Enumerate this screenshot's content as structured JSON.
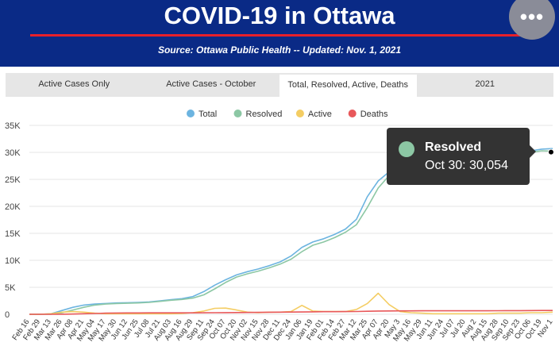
{
  "header": {
    "title": "COVID-19 in Ottawa",
    "subtitle": "Source:  Ottawa Public Health -- Updated:  Nov. 1, 2021",
    "menu_icon": "more-horizontal-icon",
    "background": "#0a2a86",
    "accent": "#e8202a"
  },
  "tabs": [
    {
      "label": "Active Cases Only",
      "active": false
    },
    {
      "label": "Active Cases - October",
      "active": false
    },
    {
      "label": "Total, Resolved, Active, Deaths",
      "active": true
    },
    {
      "label": "2021",
      "active": false
    }
  ],
  "tooltip": {
    "series": "Resolved",
    "text": "Oct 30: 30,054",
    "color": "#8cc7a4"
  },
  "chart_data": {
    "type": "line",
    "x": [
      "Feb 16",
      "Feb 29",
      "Mar 13",
      "Mar 26",
      "Apr 08",
      "Apr 21",
      "May 04",
      "May 17",
      "May 30",
      "Jun 12",
      "Jun 25",
      "Jul 08",
      "Jul 21",
      "Aug 03",
      "Aug 16",
      "Aug 29",
      "Sep 11",
      "Sep 24",
      "Oct 07",
      "Oct 20",
      "Nov 02",
      "Nov 15",
      "Nov 28",
      "Dec 11",
      "Dec 24",
      "Jan 06",
      "Jan 19",
      "Feb 01",
      "Feb 14",
      "Feb 27",
      "Mar 12",
      "Mar 25",
      "Apr 07",
      "Apr 20",
      "May 3",
      "May 16",
      "May 29",
      "Jun 11",
      "Jun 24",
      "Jul 07",
      "Jul 20",
      "Aug 2",
      "Aug 15",
      "Aug 28",
      "Sep 10",
      "Sep 23",
      "Oct 06",
      "Oct 19",
      "Nov 1"
    ],
    "series": [
      {
        "name": "Total",
        "color": "#6cb4e0",
        "values": [
          0,
          0,
          100,
          700,
          1300,
          1700,
          1900,
          2000,
          2100,
          2150,
          2200,
          2300,
          2500,
          2700,
          2900,
          3300,
          4200,
          5400,
          6400,
          7300,
          7900,
          8400,
          9000,
          9700,
          10800,
          12400,
          13400,
          14000,
          14800,
          15800,
          17600,
          21800,
          24700,
          26400,
          27200,
          27500,
          27800,
          27900,
          28000,
          28100,
          28200,
          28300,
          28600,
          29000,
          29400,
          29800,
          30300,
          30600,
          30700
        ]
      },
      {
        "name": "Resolved",
        "color": "#8cc7a4",
        "values": [
          0,
          0,
          0,
          300,
          800,
          1300,
          1700,
          1900,
          2000,
          2050,
          2100,
          2200,
          2400,
          2600,
          2750,
          3000,
          3600,
          4700,
          5900,
          6900,
          7500,
          8000,
          8600,
          9300,
          10200,
          11600,
          12800,
          13400,
          14200,
          15200,
          16600,
          19800,
          23400,
          25700,
          26600,
          27100,
          27500,
          27700,
          27900,
          28000,
          28100,
          28200,
          28400,
          28800,
          29200,
          29600,
          30000,
          30300,
          30200
        ]
      },
      {
        "name": "Active",
        "color": "#f4cd63",
        "values": [
          0,
          0,
          100,
          400,
          500,
          400,
          200,
          100,
          100,
          100,
          100,
          100,
          100,
          100,
          150,
          300,
          600,
          1100,
          1150,
          800,
          400,
          300,
          400,
          400,
          500,
          1650,
          600,
          500,
          500,
          500,
          900,
          2000,
          3900,
          1800,
          500,
          300,
          200,
          100,
          100,
          100,
          100,
          100,
          100,
          200,
          200,
          200,
          300,
          300,
          400
        ]
      },
      {
        "name": "Deaths",
        "color": "#e8585a",
        "values": [
          0,
          0,
          0,
          10,
          50,
          100,
          150,
          200,
          230,
          250,
          255,
          260,
          262,
          265,
          268,
          270,
          275,
          290,
          310,
          330,
          345,
          360,
          380,
          400,
          410,
          430,
          460,
          480,
          490,
          500,
          520,
          560,
          600,
          620,
          630,
          635,
          640,
          640,
          640,
          640,
          640,
          645,
          650,
          660,
          670,
          680,
          690,
          700,
          700
        ]
      }
    ],
    "ylim": [
      0,
      35000
    ],
    "yticks": [
      "0",
      "5K",
      "10K",
      "15K",
      "20K",
      "25K",
      "30K",
      "35K"
    ],
    "legend_position": "top-center",
    "grid": true,
    "highlight": {
      "series": "Resolved",
      "x": "Oct 30",
      "value": 30054
    }
  }
}
